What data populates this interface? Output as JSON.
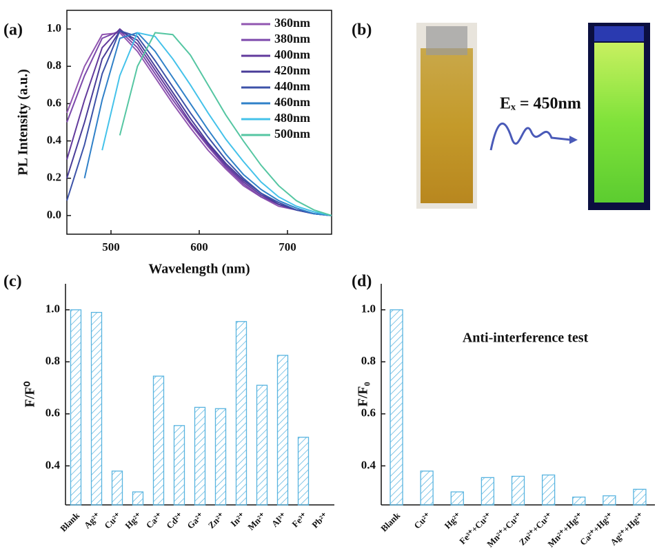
{
  "chart_data": [
    {
      "type": "line",
      "panel": "(a)",
      "x_label": "Wavelength (nm)",
      "y_label": "PL Intensity (a.u.)",
      "xlim": [
        450,
        750
      ],
      "ylim": [
        -0.1,
        1.1
      ],
      "xticks": [
        500,
        600,
        700
      ],
      "yticks": [
        {
          "value": 0,
          "label": "0.0"
        },
        0.2,
        0.4,
        0.6,
        0.8,
        {
          "value": 1,
          "label": "1.0"
        }
      ],
      "x": [
        450,
        470,
        490,
        510,
        530,
        550,
        570,
        590,
        610,
        630,
        650,
        670,
        690,
        710,
        730,
        750
      ],
      "series": [
        {
          "name": "360nm",
          "color": "#9055b0",
          "values": [
            0.55,
            0.8,
            0.97,
            0.98,
            0.88,
            0.74,
            0.6,
            0.47,
            0.35,
            0.25,
            0.16,
            0.1,
            0.05,
            0.03,
            0.01,
            0
          ]
        },
        {
          "name": "380nm",
          "color": "#7c48ab",
          "values": [
            0.5,
            0.75,
            0.95,
            0.99,
            0.9,
            0.76,
            0.62,
            0.49,
            0.37,
            0.26,
            0.17,
            0.1,
            0.06,
            0.03,
            0.01,
            0
          ]
        },
        {
          "name": "400nm",
          "color": "#623a9c",
          "values": [
            0.3,
            0.62,
            0.9,
            1.0,
            0.92,
            0.78,
            0.64,
            0.5,
            0.38,
            0.27,
            0.18,
            0.11,
            0.06,
            0.03,
            0.01,
            0
          ]
        },
        {
          "name": "420nm",
          "color": "#493c98",
          "values": [
            0.2,
            0.5,
            0.84,
            0.99,
            0.94,
            0.8,
            0.66,
            0.52,
            0.39,
            0.28,
            0.19,
            0.12,
            0.06,
            0.03,
            0.01,
            0
          ]
        },
        {
          "name": "440nm",
          "color": "#3c52a8",
          "values": [
            0.08,
            0.38,
            0.76,
            0.99,
            0.96,
            0.83,
            0.69,
            0.55,
            0.42,
            0.3,
            0.2,
            0.12,
            0.07,
            0.03,
            0.01,
            0
          ]
        },
        {
          "name": "460nm",
          "color": "#2f80c8",
          "values": [
            null,
            0.2,
            0.62,
            0.95,
            0.98,
            0.88,
            0.74,
            0.6,
            0.46,
            0.33,
            0.22,
            0.14,
            0.08,
            0.04,
            0.01,
            0
          ]
        },
        {
          "name": "480nm",
          "color": "#44c2ea",
          "values": [
            null,
            null,
            0.35,
            0.75,
            0.98,
            0.96,
            0.84,
            0.7,
            0.55,
            0.41,
            0.29,
            0.18,
            0.1,
            0.05,
            0.02,
            0
          ]
        },
        {
          "name": "500nm",
          "color": "#55c6a2",
          "values": [
            null,
            null,
            null,
            0.43,
            0.8,
            0.98,
            0.97,
            0.86,
            0.7,
            0.54,
            0.4,
            0.27,
            0.16,
            0.08,
            0.03,
            0
          ]
        }
      ]
    },
    {
      "type": "bar",
      "panel": "(c)",
      "y_label": "F/F⁰",
      "color": "#58b4e0",
      "ylim": [
        0.25,
        1.1
      ],
      "yticks": [
        0.4,
        0.6,
        0.8,
        {
          "value": 1,
          "label": "1.0"
        }
      ],
      "categories": [
        "Blank",
        "Ag²⁺",
        "Cu²⁺",
        "Hg²⁺",
        "Ca²⁺",
        "Cd²⁺",
        "Ga²⁺",
        "Zn²⁺",
        "In²⁺",
        "Mn²⁺",
        "Al³⁺",
        "Fe³⁺",
        "Pb²⁺"
      ],
      "values": [
        1.0,
        0.99,
        0.38,
        0.3,
        0.745,
        0.555,
        0.625,
        0.62,
        0.955,
        0.71,
        0.825,
        0.51,
        null
      ]
    },
    {
      "type": "bar",
      "panel": "(d)",
      "y_label": "F/F₀",
      "annotation": "Anti-interference test",
      "color": "#58b4e0",
      "ylim": [
        0.25,
        1.1
      ],
      "yticks": [
        0.4,
        0.6,
        0.8,
        {
          "value": 1,
          "label": "1.0"
        }
      ],
      "categories": [
        "Blank",
        "Cu²⁺",
        "Hg²⁺",
        "Fe³⁺+Cu²⁺",
        "Mn²⁺+Cu²⁺",
        "Zn²⁺+Cu²⁺",
        "Mn²⁺+Hg²⁺",
        "Ca²⁺+Hg²⁺",
        "Ag²⁺+Hg²⁺"
      ],
      "values": [
        1.0,
        0.38,
        0.3,
        0.355,
        0.36,
        0.365,
        0.28,
        0.285,
        0.31
      ]
    }
  ],
  "image_panel": {
    "panel": "(b)",
    "label": "Eₓ = 450nm"
  }
}
